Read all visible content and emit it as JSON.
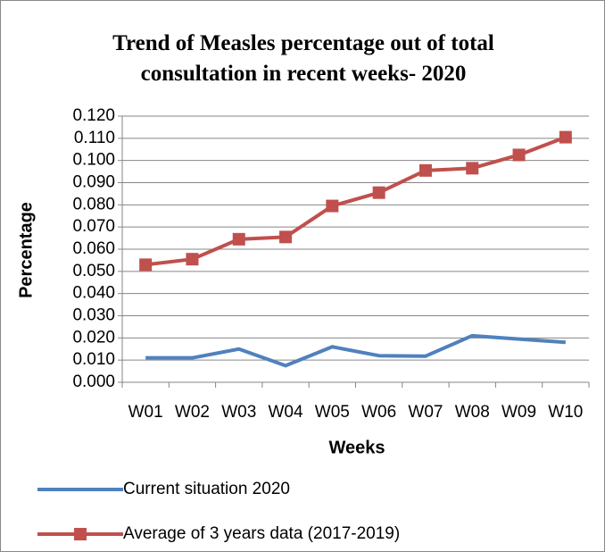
{
  "chart_data": {
    "type": "line",
    "title": "Trend of Measles percentage out of total consultation in recent weeks- 2020",
    "x_label": "Weeks",
    "y_label": "Percentage",
    "categories": [
      "W01",
      "W02",
      "W03",
      "W04",
      "W05",
      "W06",
      "W07",
      "W08",
      "W09",
      "W10"
    ],
    "series": [
      {
        "name": "Current situation 2020",
        "color": "#4f81bd",
        "marker": "none",
        "values": [
          0.011,
          0.011,
          0.015,
          0.0075,
          0.016,
          0.012,
          0.0118,
          0.021,
          0.0195,
          0.018
        ]
      },
      {
        "name": "Average of 3 years data (2017-2019)",
        "color": "#c0504d",
        "marker": "square",
        "values": [
          0.053,
          0.0555,
          0.0645,
          0.0655,
          0.0795,
          0.0855,
          0.0955,
          0.0965,
          0.1025,
          0.1105
        ]
      }
    ],
    "ylim": [
      0,
      0.12
    ],
    "yticks": [
      {
        "value": 0,
        "label": "0.000"
      },
      {
        "value": 0.01,
        "label": "0.010"
      },
      {
        "value": 0.02,
        "label": "0.020"
      },
      {
        "value": 0.03,
        "label": "0.030"
      },
      {
        "value": 0.04,
        "label": "0.040"
      },
      {
        "value": 0.05,
        "label": "0.050"
      },
      {
        "value": 0.06,
        "label": "0.060"
      },
      {
        "value": 0.07,
        "label": "0.070"
      },
      {
        "value": 0.08,
        "label": "0.080"
      },
      {
        "value": 0.09,
        "label": "0.090"
      },
      {
        "value": 0.1,
        "label": "0.100"
      },
      {
        "value": 0.11,
        "label": "0.110"
      },
      {
        "value": 0.12,
        "label": "0.120"
      }
    ],
    "grid": true,
    "legend": "bottom"
  }
}
